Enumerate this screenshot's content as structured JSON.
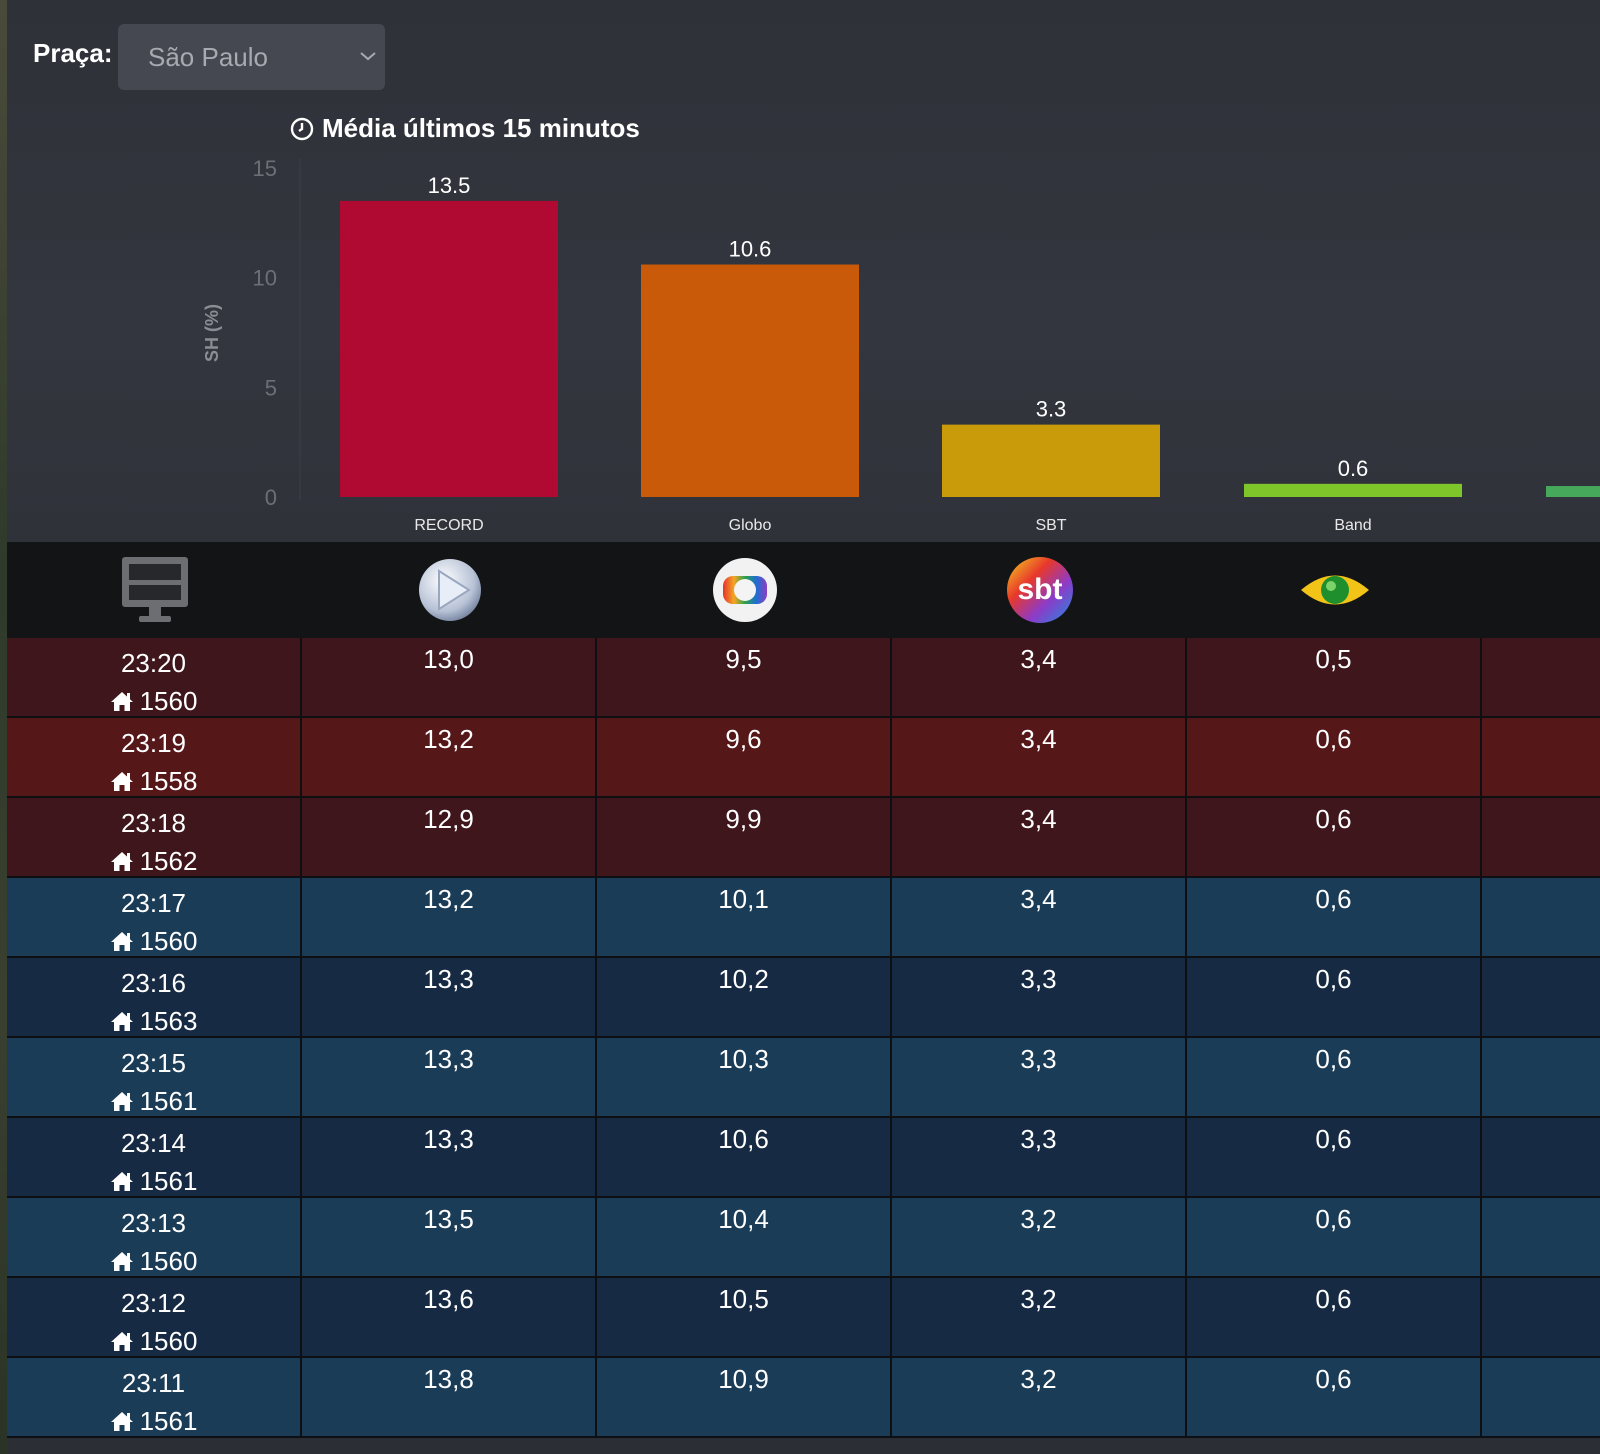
{
  "filter": {
    "label": "Praça:",
    "selected": "São Paulo",
    "icon": "chevron-down-icon"
  },
  "chart_title": "Média últimos 15 minutos",
  "chart_data": {
    "type": "bar",
    "title": "Média últimos 15 minutos",
    "ylabel": "SH (%)",
    "xlabel": "",
    "ylim": [
      0,
      15
    ],
    "yticks": [
      0,
      5,
      10,
      15
    ],
    "grid": false,
    "categories": [
      "RECORD",
      "Globo",
      "SBT",
      "Band",
      ""
    ],
    "values": [
      13.5,
      10.6,
      3.3,
      0.6,
      0.5
    ],
    "value_labels": [
      "13.5",
      "10.6",
      "3.3",
      "0.6",
      ""
    ],
    "colors": [
      "#b00a33",
      "#c85a0a",
      "#c99a0a",
      "#7ec62a",
      "#45a85a"
    ]
  },
  "table": {
    "header_icons": [
      "tv-icon",
      "record-logo-icon",
      "globo-logo-icon",
      "sbt-logo-icon",
      "band-logo-icon"
    ],
    "rows": [
      {
        "time": "23:20",
        "homes": "1560",
        "values": [
          "13,0",
          "9,5",
          "3,4",
          "0,5"
        ],
        "bg": "#3e161b"
      },
      {
        "time": "23:19",
        "homes": "1558",
        "values": [
          "13,2",
          "9,6",
          "3,4",
          "0,6"
        ],
        "bg": "#561719"
      },
      {
        "time": "23:18",
        "homes": "1562",
        "values": [
          "12,9",
          "9,9",
          "3,4",
          "0,6"
        ],
        "bg": "#3e161b"
      },
      {
        "time": "23:17",
        "homes": "1560",
        "values": [
          "13,2",
          "10,1",
          "3,4",
          "0,6"
        ],
        "bg": "#1b3c57"
      },
      {
        "time": "23:16",
        "homes": "1563",
        "values": [
          "13,3",
          "10,2",
          "3,3",
          "0,6"
        ],
        "bg": "#172a43"
      },
      {
        "time": "23:15",
        "homes": "1561",
        "values": [
          "13,3",
          "10,3",
          "3,3",
          "0,6"
        ],
        "bg": "#1b3c57"
      },
      {
        "time": "23:14",
        "homes": "1561",
        "values": [
          "13,3",
          "10,6",
          "3,3",
          "0,6"
        ],
        "bg": "#172a43"
      },
      {
        "time": "23:13",
        "homes": "1560",
        "values": [
          "13,5",
          "10,4",
          "3,2",
          "0,6"
        ],
        "bg": "#1b3c57"
      },
      {
        "time": "23:12",
        "homes": "1560",
        "values": [
          "13,6",
          "10,5",
          "3,2",
          "0,6"
        ],
        "bg": "#172a43"
      },
      {
        "time": "23:11",
        "homes": "1561",
        "values": [
          "13,8",
          "10,9",
          "3,2",
          "0,6"
        ],
        "bg": "#1b3c57"
      }
    ]
  }
}
